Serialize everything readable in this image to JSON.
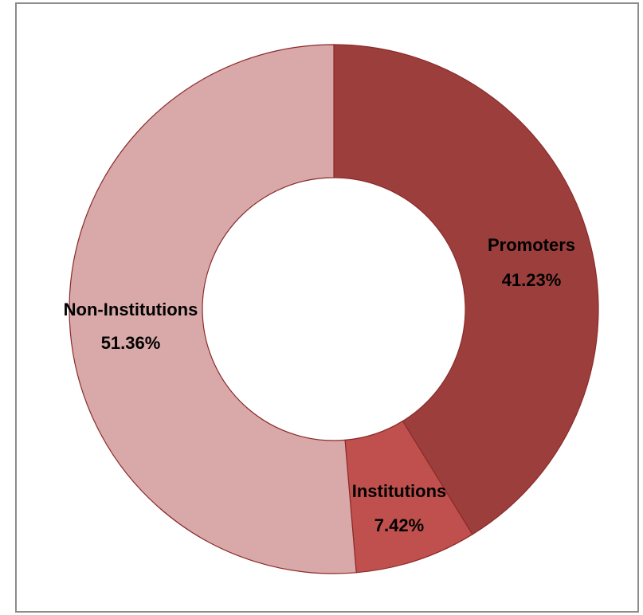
{
  "chart_data": {
    "type": "pie",
    "variant": "donut",
    "title": "",
    "slices": [
      {
        "name": "Promoters",
        "value": 41.23,
        "label": "41.23%",
        "color": "#9c3f3c"
      },
      {
        "name": "Institutions",
        "value": 7.42,
        "label": "7.42%",
        "color": "#c0504d"
      },
      {
        "name": "Non-Institutions",
        "value": 51.36,
        "label": "51.36%",
        "color": "#d9a9a9"
      }
    ],
    "start_angle_deg": 0,
    "direction": "clockwise",
    "legend": "none"
  }
}
